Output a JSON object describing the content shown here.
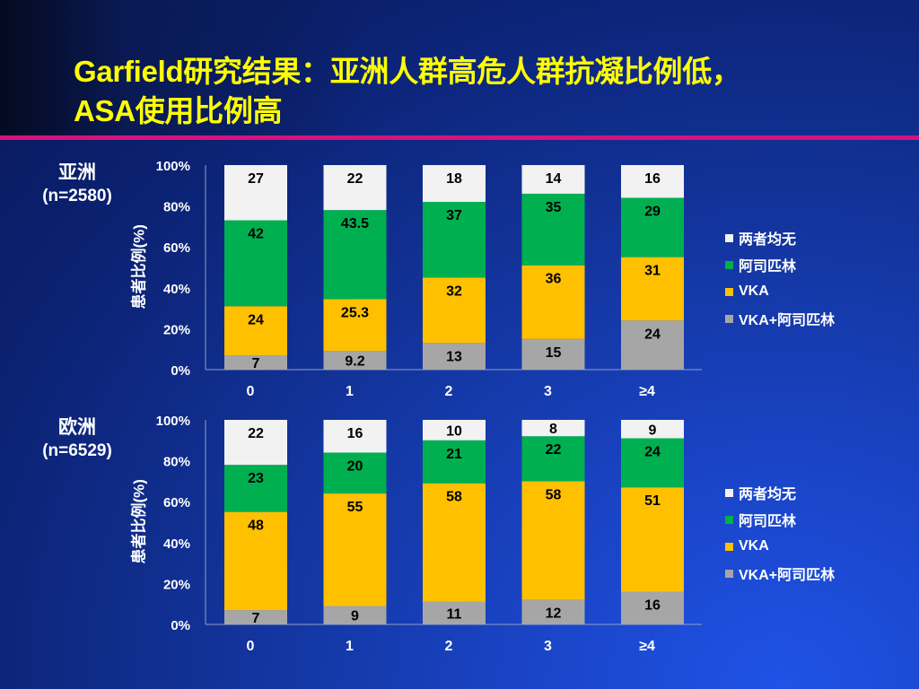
{
  "slide": {
    "title_line1": "Garfield研究结果：亚洲人群高危人群抗凝比例低，",
    "title_line2": "ASA使用比例高"
  },
  "colors": {
    "none": "#f2f2f2",
    "aspirin": "#00b050",
    "vka": "#ffc000",
    "vka_aspirin": "#a6a6a6",
    "title": "#ffff00",
    "divider": "#d6127e"
  },
  "chart_data": [
    {
      "type": "bar",
      "stacked": true,
      "region": "亚洲",
      "n_label": "(n=2580)",
      "ylabel": "患者比例(%)",
      "ylim": [
        0,
        100
      ],
      "yticks": [
        "0%",
        "20%",
        "40%",
        "60%",
        "80%",
        "100%"
      ],
      "categories": [
        "0",
        "1",
        "2",
        "3",
        "≥4"
      ],
      "series": [
        {
          "key": "vka_aspirin",
          "name": "VKA+阿司匹林",
          "values": [
            7,
            9.2,
            13,
            15,
            24
          ],
          "labels": [
            "7",
            "9.2",
            "13",
            "15",
            "24"
          ]
        },
        {
          "key": "vka",
          "name": "VKA",
          "values": [
            24,
            25.3,
            32,
            36,
            31
          ],
          "labels": [
            "24",
            "25.3",
            "32",
            "36",
            "31"
          ]
        },
        {
          "key": "aspirin",
          "name": "阿司匹林",
          "values": [
            42,
            43.5,
            37,
            35,
            29
          ],
          "labels": [
            "42",
            "43.5",
            "37",
            "35",
            "29"
          ]
        },
        {
          "key": "none",
          "name": "两者均无",
          "values": [
            27,
            22,
            18,
            14,
            16
          ],
          "labels": [
            "27",
            "22",
            "18",
            "14",
            "16"
          ]
        }
      ],
      "legend": [
        "两者均无",
        "阿司匹林",
        "VKA",
        "VKA+阿司匹林"
      ],
      "legend_position": "right"
    },
    {
      "type": "bar",
      "stacked": true,
      "region": "欧洲",
      "n_label": "(n=6529)",
      "ylabel": "患者比例(%)",
      "ylim": [
        0,
        100
      ],
      "yticks": [
        "0%",
        "20%",
        "40%",
        "60%",
        "80%",
        "100%"
      ],
      "categories": [
        "0",
        "1",
        "2",
        "3",
        "≥4"
      ],
      "series": [
        {
          "key": "vka_aspirin",
          "name": "VKA+阿司匹林",
          "values": [
            7,
            9,
            11,
            12,
            16
          ],
          "labels": [
            "7",
            "9",
            "11",
            "12",
            "16"
          ]
        },
        {
          "key": "vka",
          "name": "VKA",
          "values": [
            48,
            55,
            58,
            58,
            51
          ],
          "labels": [
            "48",
            "55",
            "58",
            "58",
            "51"
          ]
        },
        {
          "key": "aspirin",
          "name": "阿司匹林",
          "values": [
            23,
            20,
            21,
            22,
            24
          ],
          "labels": [
            "23",
            "20",
            "21",
            "22",
            "24"
          ]
        },
        {
          "key": "none",
          "name": "两者均无",
          "values": [
            22,
            16,
            10,
            8,
            9
          ],
          "labels": [
            "22",
            "16",
            "10",
            "8",
            "9"
          ]
        }
      ],
      "legend": [
        "两者均无",
        "阿司匹林",
        "VKA",
        "VKA+阿司匹林"
      ],
      "legend_position": "right"
    }
  ]
}
